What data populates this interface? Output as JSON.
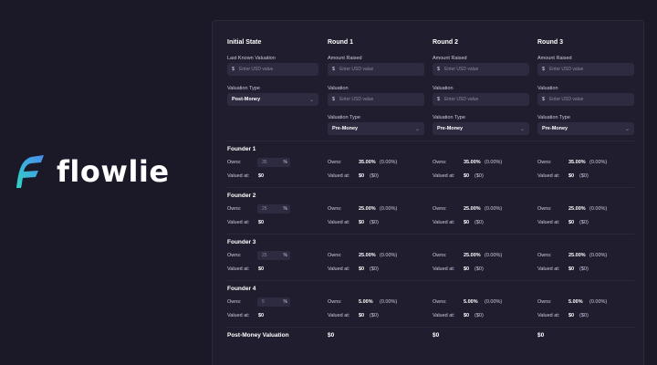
{
  "brand": {
    "name": "flowlie"
  },
  "columns": [
    {
      "title": "Initial State"
    },
    {
      "title": "Round 1"
    },
    {
      "title": "Round 2"
    },
    {
      "title": "Round 3"
    }
  ],
  "initial": {
    "valuation_label": "Last Known Valuation",
    "valuation_placeholder": "Enter USD value",
    "type_label": "Valuation Type",
    "type_value": "Post-Money"
  },
  "rounds": [
    {
      "amount_label": "Amount Raised",
      "amount_placeholder": "Enter USD value",
      "valuation_label": "Valuation",
      "valuation_placeholder": "Enter USD value",
      "type_label": "Valuation Type",
      "type_value": "Pre-Money"
    },
    {
      "amount_label": "Amount Raised",
      "amount_placeholder": "Enter USD value",
      "valuation_label": "Valuation",
      "valuation_placeholder": "Enter USD value",
      "type_label": "Valuation Type",
      "type_value": "Pre-Money"
    },
    {
      "amount_label": "Amount Raised",
      "amount_placeholder": "Enter USD value",
      "valuation_label": "Valuation",
      "valuation_placeholder": "Enter USD value",
      "type_label": "Valuation Type",
      "type_value": "Pre-Money"
    }
  ],
  "labels": {
    "owns": "Owns:",
    "valued_at": "Valued at:",
    "currency_symbol": "$",
    "percent_symbol": "%",
    "chevron": "⌄"
  },
  "founders": [
    {
      "name": "Founder 1",
      "owns_input": "35",
      "valued": "$0",
      "round_owns": "35.00%",
      "round_owns_change": "(0.00%)",
      "round_valued": "$0",
      "round_valued_change": "($0)"
    },
    {
      "name": "Founder 2",
      "owns_input": "25",
      "valued": "$0",
      "round_owns": "25.00%",
      "round_owns_change": "(0.00%)",
      "round_valued": "$0",
      "round_valued_change": "($0)"
    },
    {
      "name": "Founder 3",
      "owns_input": "25",
      "valued": "$0",
      "round_owns": "25.00%",
      "round_owns_change": "(0.00%)",
      "round_valued": "$0",
      "round_valued_change": "($0)"
    },
    {
      "name": "Founder 4",
      "owns_input": "5",
      "valued": "$0",
      "round_owns": "5.00%",
      "round_owns_change": "(0.00%)",
      "round_valued": "$0",
      "round_valued_change": "($0)"
    }
  ],
  "footer": {
    "label": "Post-Money Valuation",
    "values": [
      "$0",
      "$0",
      "$0"
    ]
  }
}
